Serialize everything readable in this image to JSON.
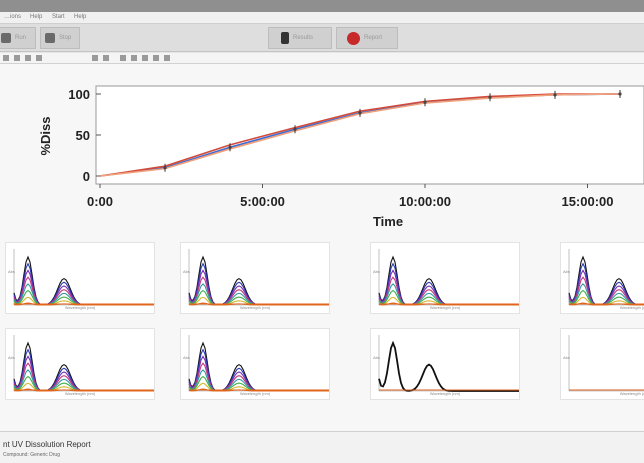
{
  "menu": {
    "items": [
      "…ions",
      "Help",
      "Start",
      "Help"
    ]
  },
  "toolbar": {
    "buttons": [
      {
        "label": "Run"
      },
      {
        "label": "Stop"
      },
      {
        "label": "Results"
      },
      {
        "label": "Report"
      }
    ]
  },
  "chart_data": {
    "type": "line",
    "title": "",
    "xlabel": "Time",
    "ylabel": "%Diss",
    "x_ticks": [
      "0:00",
      "5:00:00",
      "10:00:00",
      "15:00:00"
    ],
    "y_ticks": [
      "0",
      "50",
      "100"
    ],
    "xlim_hours": [
      0,
      16
    ],
    "ylim": [
      -5,
      105
    ],
    "series": [
      {
        "x_hours": [
          0,
          2,
          4,
          6,
          8,
          10,
          12,
          14,
          16
        ],
        "values": [
          0,
          10,
          35,
          57,
          77,
          90,
          96,
          99,
          100
        ]
      },
      {
        "x_hours": [
          0,
          2,
          4,
          6,
          8,
          10,
          12,
          14,
          16
        ],
        "values": [
          0,
          12,
          38,
          59,
          79,
          91,
          97,
          100,
          100
        ]
      },
      {
        "x_hours": [
          0,
          2,
          4,
          6,
          8,
          10,
          12,
          14,
          16
        ],
        "values": [
          0,
          9,
          33,
          55,
          76,
          89,
          95,
          99,
          100
        ]
      }
    ],
    "series_colors": [
      "#3a6ad4",
      "#d24a3a",
      "#f0a07a"
    ]
  },
  "spectra": {
    "xlabel": "Wavelength (nm)",
    "ylabel": "Abs",
    "band_colors": [
      "#111111",
      "#2a3bb0",
      "#7a2db3",
      "#c2387a",
      "#2f9aa6",
      "#3fae4a",
      "#d4b52a",
      "#e06a1c"
    ],
    "panels": [
      {
        "levels": [
          1.0,
          0.86,
          0.72,
          0.58,
          0.44,
          0.3,
          0.16,
          0.04
        ],
        "secondary": 0.55
      },
      {
        "levels": [
          1.0,
          0.86,
          0.72,
          0.58,
          0.44,
          0.3,
          0.16,
          0.04
        ],
        "secondary": 0.55
      },
      {
        "levels": [
          1.0,
          0.86,
          0.72,
          0.58,
          0.44,
          0.3,
          0.16,
          0.04
        ],
        "secondary": 0.55
      },
      {
        "levels": [
          1.0,
          0.86,
          0.72,
          0.58,
          0.44,
          0.3,
          0.16,
          0.04
        ],
        "secondary": 0.55
      },
      {
        "levels": [
          1.0,
          0.86,
          0.72,
          0.58,
          0.44,
          0.3,
          0.16,
          0.04
        ],
        "secondary": 0.55
      },
      {
        "levels": [
          1.0,
          0.86,
          0.72,
          0.58,
          0.44,
          0.3,
          0.16,
          0.04
        ],
        "secondary": 0.55
      },
      {
        "levels": [
          1.0
        ],
        "secondary": 0.55
      },
      {
        "levels": [],
        "secondary": 0
      }
    ]
  },
  "report": {
    "title": "nt UV Dissolution Report",
    "subtitle": "Compound: Generic Drug"
  }
}
